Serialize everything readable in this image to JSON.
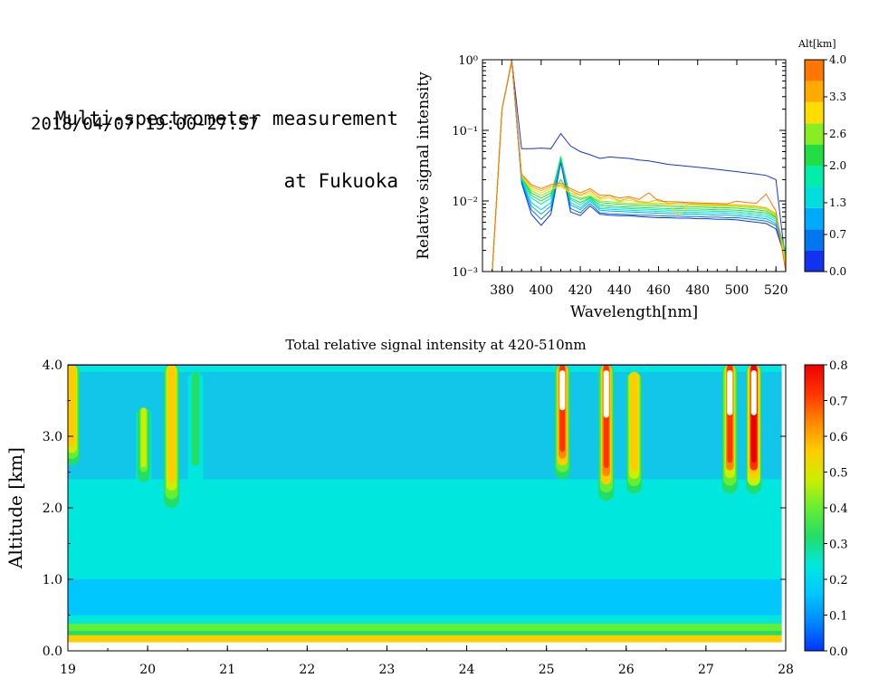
{
  "header": {
    "title_line1": "Multi-spectrometer measurement",
    "title_line2": "at Fukuoka",
    "time_range": "2018/04/07 19:00-27:57"
  },
  "colors": {
    "alt_scale": [
      "#1133ee",
      "#0077ee",
      "#00aaff",
      "#00dddd",
      "#00eeaa",
      "#22dd44",
      "#88ee22",
      "#ffdd00",
      "#ffaa00",
      "#ff7700"
    ],
    "intensity_scale": [
      "#0033ff",
      "#0088ff",
      "#00c8ff",
      "#00e8dd",
      "#22dd66",
      "#66ee33",
      "#ccee00",
      "#ffcc00",
      "#ff8800",
      "#ff3300",
      "#ee0000"
    ],
    "heatmap_background": "#11c8e8"
  },
  "chart_data": [
    {
      "type": "line",
      "xlabel": "Wavelength[nm]",
      "ylabel": "Relative signal intensity",
      "y_scale": "log",
      "xlim": [
        370,
        525
      ],
      "ylim": [
        0.001,
        1
      ],
      "x_ticks": [
        "380",
        "400",
        "420",
        "440",
        "460",
        "480",
        "500",
        "520"
      ],
      "y_ticks": [
        "10⁰",
        "10⁻¹",
        "10⁻²",
        "10⁻³"
      ],
      "x": [
        375,
        380,
        385,
        390,
        395,
        400,
        405,
        410,
        415,
        420,
        425,
        430,
        435,
        440,
        445,
        450,
        455,
        460,
        465,
        470,
        475,
        480,
        485,
        490,
        495,
        500,
        505,
        510,
        515,
        520,
        525
      ],
      "series": [
        {
          "alt": 0.0,
          "values": [
            0.001,
            0.2,
            1.0,
            0.055,
            0.055,
            0.056,
            0.055,
            0.09,
            0.06,
            0.05,
            0.045,
            0.04,
            0.042,
            0.041,
            0.04,
            0.038,
            0.037,
            0.035,
            0.033,
            0.032,
            0.031,
            0.03,
            0.029,
            0.028,
            0.027,
            0.026,
            0.025,
            0.024,
            0.023,
            0.02,
            0.0013
          ]
        },
        {
          "alt": 0.3,
          "values": [
            0.001,
            0.2,
            0.95,
            0.018,
            0.0065,
            0.0045,
            0.0065,
            0.035,
            0.007,
            0.0062,
            0.0085,
            0.0065,
            0.0063,
            0.0062,
            0.0062,
            0.006,
            0.0059,
            0.0058,
            0.0058,
            0.0057,
            0.0057,
            0.0056,
            0.0056,
            0.0055,
            0.0055,
            0.0054,
            0.0052,
            0.005,
            0.0048,
            0.004,
            0.0015
          ]
        },
        {
          "alt": 0.7,
          "values": [
            0.001,
            0.2,
            0.95,
            0.019,
            0.0075,
            0.0055,
            0.0075,
            0.038,
            0.0078,
            0.0068,
            0.0092,
            0.0068,
            0.0066,
            0.0065,
            0.0064,
            0.0063,
            0.0063,
            0.0062,
            0.0061,
            0.0061,
            0.006,
            0.006,
            0.0059,
            0.0059,
            0.0058,
            0.0058,
            0.0056,
            0.0054,
            0.0052,
            0.0045,
            0.0016
          ]
        },
        {
          "alt": 1.0,
          "values": [
            0.001,
            0.2,
            0.95,
            0.02,
            0.0085,
            0.0065,
            0.0085,
            0.04,
            0.0088,
            0.0075,
            0.01,
            0.0074,
            0.0072,
            0.0071,
            0.007,
            0.0069,
            0.0068,
            0.0067,
            0.0066,
            0.0066,
            0.0065,
            0.0065,
            0.0064,
            0.0063,
            0.0063,
            0.0062,
            0.006,
            0.0058,
            0.0056,
            0.0048,
            0.0017
          ]
        },
        {
          "alt": 1.3,
          "values": [
            0.001,
            0.2,
            0.95,
            0.021,
            0.0095,
            0.0075,
            0.0095,
            0.042,
            0.0095,
            0.008,
            0.0105,
            0.0078,
            0.0076,
            0.0075,
            0.0074,
            0.0073,
            0.0072,
            0.0071,
            0.007,
            0.007,
            0.0069,
            0.0069,
            0.0068,
            0.0068,
            0.0067,
            0.0066,
            0.0064,
            0.0062,
            0.006,
            0.0052,
            0.0018
          ]
        },
        {
          "alt": 1.7,
          "values": [
            0.001,
            0.2,
            0.95,
            0.021,
            0.011,
            0.009,
            0.011,
            0.043,
            0.0105,
            0.0088,
            0.011,
            0.0082,
            0.008,
            0.0079,
            0.0078,
            0.0077,
            0.0076,
            0.0075,
            0.0074,
            0.0074,
            0.0073,
            0.0073,
            0.0072,
            0.0071,
            0.0071,
            0.007,
            0.0068,
            0.0066,
            0.0064,
            0.0055,
            0.0018
          ]
        },
        {
          "alt": 2.0,
          "values": [
            0.001,
            0.2,
            0.95,
            0.022,
            0.012,
            0.01,
            0.012,
            0.04,
            0.011,
            0.0095,
            0.0112,
            0.0088,
            0.0085,
            0.0083,
            0.0082,
            0.0081,
            0.008,
            0.0079,
            0.0078,
            0.0078,
            0.0077,
            0.0077,
            0.0076,
            0.0075,
            0.0075,
            0.0074,
            0.0072,
            0.007,
            0.0068,
            0.0058,
            0.0019
          ]
        },
        {
          "alt": 2.3,
          "values": [
            0.001,
            0.2,
            0.95,
            0.022,
            0.013,
            0.011,
            0.013,
            0.02,
            0.012,
            0.0105,
            0.0115,
            0.0095,
            0.0092,
            0.009,
            0.0088,
            0.0087,
            0.0086,
            0.0085,
            0.0084,
            0.0083,
            0.0082,
            0.0082,
            0.0081,
            0.008,
            0.008,
            0.0079,
            0.0077,
            0.0075,
            0.0072,
            0.006,
            0.0018
          ]
        },
        {
          "alt": 2.6,
          "values": [
            0.001,
            0.2,
            0.95,
            0.022,
            0.014,
            0.012,
            0.014,
            0.017,
            0.013,
            0.011,
            0.012,
            0.01,
            0.0098,
            0.0095,
            0.0093,
            0.0092,
            0.0091,
            0.009,
            0.0089,
            0.0088,
            0.0087,
            0.0086,
            0.0085,
            0.0085,
            0.0084,
            0.0083,
            0.0081,
            0.0079,
            0.0076,
            0.0062,
            0.0015
          ]
        },
        {
          "alt": 3.0,
          "values": [
            0.001,
            0.2,
            0.95,
            0.023,
            0.015,
            0.013,
            0.015,
            0.016,
            0.013,
            0.012,
            0.013,
            0.0105,
            0.011,
            0.0098,
            0.0102,
            0.0096,
            0.0093,
            0.0094,
            0.0091,
            0.0062,
            0.009,
            0.0089,
            0.0088,
            0.0087,
            0.0086,
            0.0086,
            0.0084,
            0.0082,
            0.0078,
            0.0064,
            0.0013
          ]
        },
        {
          "alt": 3.3,
          "values": [
            0.001,
            0.2,
            0.95,
            0.023,
            0.016,
            0.014,
            0.016,
            0.017,
            0.014,
            0.012,
            0.014,
            0.011,
            0.012,
            0.01,
            0.011,
            0.0098,
            0.0096,
            0.0105,
            0.0092,
            0.0094,
            0.0092,
            0.0091,
            0.009,
            0.0089,
            0.0088,
            0.0088,
            0.0086,
            0.0084,
            0.008,
            0.0066,
            0.0011
          ]
        },
        {
          "alt": 3.7,
          "values": [
            0.001,
            0.2,
            0.95,
            0.024,
            0.017,
            0.015,
            0.017,
            0.018,
            0.015,
            0.013,
            0.015,
            0.012,
            0.012,
            0.011,
            0.0115,
            0.0105,
            0.013,
            0.01,
            0.0098,
            0.0097,
            0.0095,
            0.0094,
            0.0093,
            0.0092,
            0.0091,
            0.0099,
            0.0095,
            0.0093,
            0.0125,
            0.0072,
            0.001
          ]
        }
      ],
      "colorbar": {
        "label": "Alt[km]",
        "range": [
          0,
          4
        ],
        "tick_labels": [
          "4.0",
          "3.3",
          "2.6",
          "2.0",
          "1.3",
          "0.7",
          "0.0"
        ]
      }
    },
    {
      "type": "heatmap",
      "title": "Total relative signal intensity at 420-510nm",
      "ylabel": "Altitude [km]",
      "xlim": [
        19,
        28
      ],
      "ylim": [
        0,
        4
      ],
      "x_ticks": [
        "19",
        "20",
        "21",
        "22",
        "23",
        "24",
        "25",
        "26",
        "27",
        "28"
      ],
      "y_ticks": [
        "0.0",
        "1.0",
        "2.0",
        "3.0",
        "4.0"
      ],
      "data_x_end": 27.95,
      "background_level": 0.22,
      "layers": [
        {
          "alt_from": 0.12,
          "alt_to": 0.22,
          "value": 0.55
        },
        {
          "alt_from": 0.22,
          "alt_to": 0.28,
          "value": 0.32
        },
        {
          "alt_from": 0.28,
          "alt_to": 0.38,
          "value": 0.4
        },
        {
          "alt_from": 0.38,
          "alt_to": 0.48,
          "value": 0.2
        },
        {
          "alt_from": 0.5,
          "alt_to": 1.0,
          "value": 0.14
        }
      ],
      "plumes": [
        {
          "time": 19.05,
          "alt_from": 2.6,
          "alt_to": 4.0,
          "value": 0.6
        },
        {
          "time": 19.95,
          "alt_from": 2.3,
          "alt_to": 3.4,
          "value": 0.45
        },
        {
          "time": 20.3,
          "alt_from": 2.0,
          "alt_to": 4.0,
          "value": 0.6
        },
        {
          "time": 20.6,
          "alt_from": 2.3,
          "alt_to": 3.9,
          "value": 0.3
        },
        {
          "time": 25.2,
          "alt_from": 2.4,
          "alt_to": 4.0,
          "value": 0.75
        },
        {
          "time": 25.75,
          "alt_from": 2.1,
          "alt_to": 4.0,
          "value": 0.75
        },
        {
          "time": 26.1,
          "alt_from": 2.2,
          "alt_to": 3.9,
          "value": 0.6
        },
        {
          "time": 27.3,
          "alt_from": 2.2,
          "alt_to": 4.0,
          "value": 0.7
        },
        {
          "time": 27.6,
          "alt_from": 2.2,
          "alt_to": 4.0,
          "value": 0.8
        }
      ],
      "colorbar": {
        "range": [
          0,
          0.8
        ],
        "tick_labels": [
          "0.8",
          "0.7",
          "0.6",
          "0.5",
          "0.4",
          "0.3",
          "0.2",
          "0.1",
          "0.0"
        ]
      }
    }
  ]
}
